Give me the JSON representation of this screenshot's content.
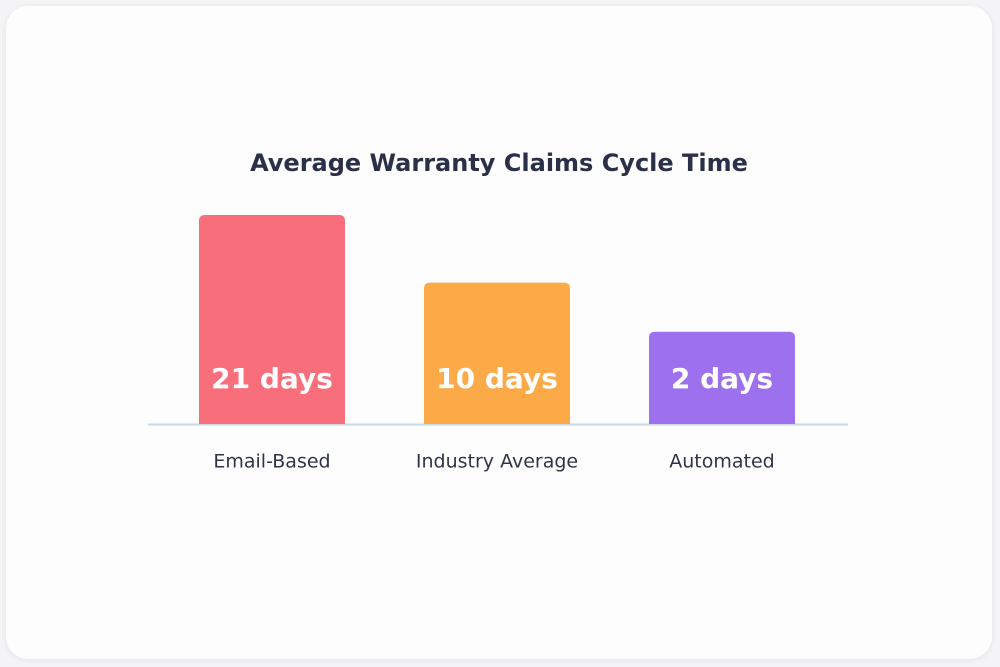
{
  "chart_data": {
    "type": "bar",
    "title": "Average Warranty Claims Cycle Time",
    "categories": [
      "Email-Based",
      "Industry Average",
      "Automated"
    ],
    "values": [
      21,
      10,
      2
    ],
    "value_labels": [
      "21 days",
      "10 days",
      "2 days"
    ],
    "colors": [
      "#f86e7a",
      "#fcaa48",
      "#9d70ee"
    ],
    "ylim": [
      -13,
      21
    ]
  }
}
